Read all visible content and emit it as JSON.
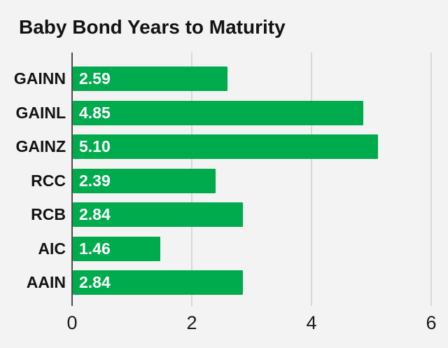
{
  "title": "Baby Bond Years to Maturity",
  "colors": {
    "bar": "#00ab4e",
    "background": "#f3f3f3",
    "grid": "#d8d8d8",
    "zero_axis": "#4a4a4a",
    "title_text": "#131313",
    "value_text": "#ffffff"
  },
  "chart_data": {
    "type": "bar",
    "orientation": "horizontal",
    "title": "Baby Bond Years to Maturity",
    "categories": [
      "GAINN",
      "GAINL",
      "GAINZ",
      "RCC",
      "RCB",
      "AIC",
      "AAIN"
    ],
    "values": [
      2.59,
      4.85,
      5.1,
      2.39,
      2.84,
      1.46,
      2.84
    ],
    "value_labels": [
      "2.59",
      "4.85",
      "5.10",
      "2.39",
      "2.84",
      "1.46",
      "2.84"
    ],
    "xlabel": "",
    "ylabel": "",
    "xlim": [
      0,
      6
    ],
    "x_ticks": [
      0,
      2,
      4,
      6
    ],
    "x_tick_labels": [
      "0",
      "2",
      "4",
      "6"
    ],
    "grid": true,
    "legend": false
  }
}
